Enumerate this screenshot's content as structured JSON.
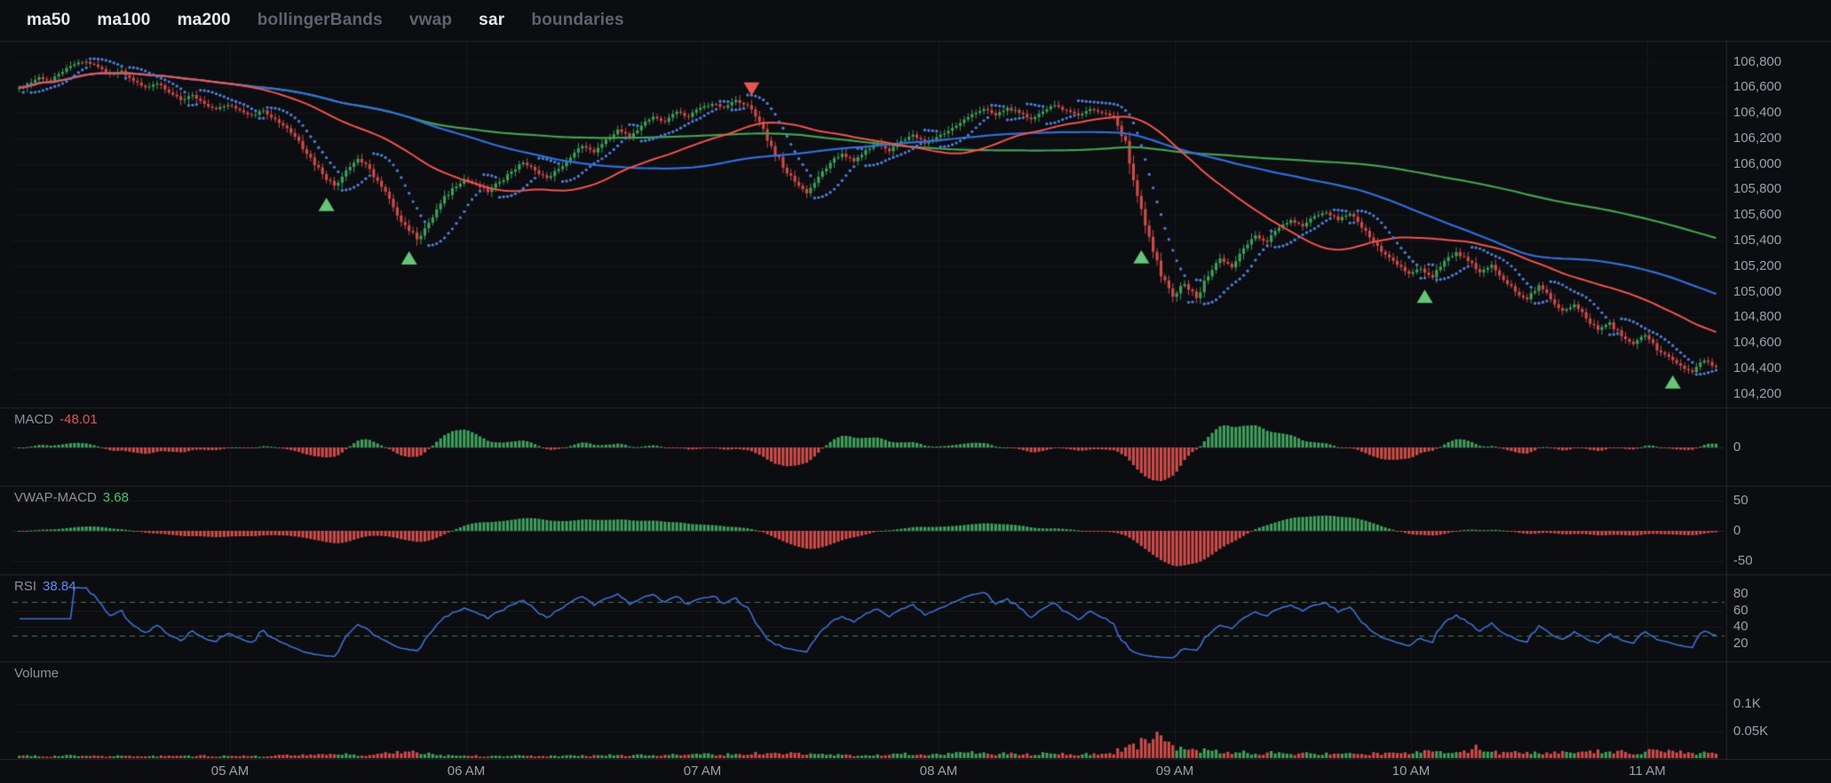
{
  "toolbar": {
    "items": [
      {
        "label": "ma50",
        "active": true
      },
      {
        "label": "ma100",
        "active": true
      },
      {
        "label": "ma200",
        "active": true
      },
      {
        "label": "bollingerBands",
        "active": false
      },
      {
        "label": "vwap",
        "active": false
      },
      {
        "label": "sar",
        "active": true
      },
      {
        "label": "boundaries",
        "active": false
      }
    ]
  },
  "panes": {
    "macd": {
      "title": "MACD",
      "value": "-48.01"
    },
    "vwap_macd": {
      "title": "VWAP-MACD",
      "value": "3.68"
    },
    "rsi": {
      "title": "RSI",
      "value": "38.84"
    },
    "volume": {
      "title": "Volume"
    }
  },
  "axes": {
    "price_ticks": [
      "106,800",
      "106,600",
      "106,400",
      "106,200",
      "106,000",
      "105,800",
      "105,600",
      "105,400",
      "105,200",
      "105,000",
      "104,800",
      "104,600",
      "104,400",
      "104,200"
    ],
    "macd_ticks": [
      {
        "label": "0",
        "value": 0
      }
    ],
    "vwap_ticks": [
      {
        "label": "50",
        "value": 50
      },
      {
        "label": "0",
        "value": 0
      },
      {
        "label": "-50",
        "value": -50
      }
    ],
    "rsi_ticks": [
      {
        "label": "80",
        "value": 80
      },
      {
        "label": "60",
        "value": 60
      },
      {
        "label": "40",
        "value": 40
      },
      {
        "label": "20",
        "value": 20
      }
    ],
    "volume_ticks": [
      {
        "label": "0.1K",
        "value": 0.1
      },
      {
        "label": "0.05K",
        "value": 0.05
      }
    ],
    "time_ticks": [
      {
        "label": "05 AM",
        "minute": 300
      },
      {
        "label": "06 AM",
        "minute": 360
      },
      {
        "label": "07 AM",
        "minute": 420
      },
      {
        "label": "08 AM",
        "minute": 480
      },
      {
        "label": "09 AM",
        "minute": 540
      },
      {
        "label": "10 AM",
        "minute": 600
      },
      {
        "label": "11 AM",
        "minute": 660
      }
    ]
  },
  "chart_data": {
    "type": "candlestick",
    "title": "Intraday price with ma50/ma100/ma200, parabolic SAR, MACD, VWAP-MACD, RSI and Volume panes",
    "start_time": "04:06",
    "interval_min": 3,
    "price_range": [
      104100,
      106950
    ],
    "price_gridline_step": 200,
    "rsi_bands": [
      70,
      30
    ],
    "series_visible": [
      "ma50",
      "ma100",
      "ma200",
      "sar"
    ],
    "indicator_values": {
      "macd": -48.01,
      "vwap_macd": 3.68,
      "rsi": 38.84
    },
    "closes": [
      106620,
      106680,
      106650,
      106720,
      106780,
      106800,
      106760,
      106700,
      106730,
      106650,
      106600,
      106630,
      106560,
      106500,
      106540,
      106470,
      106430,
      106460,
      106420,
      106380,
      106420,
      106350,
      106280,
      106180,
      106050,
      105920,
      105830,
      105950,
      106040,
      105960,
      105820,
      105660,
      105520,
      105410,
      105540,
      105690,
      105810,
      105880,
      105840,
      105780,
      105860,
      105940,
      106010,
      105950,
      105890,
      105960,
      106050,
      106140,
      106090,
      106190,
      106270,
      106210,
      106300,
      106370,
      106330,
      106410,
      106370,
      106440,
      106470,
      106440,
      106500,
      106460,
      106330,
      106140,
      105970,
      105860,
      105770,
      105900,
      106010,
      106080,
      106020,
      106110,
      106160,
      106100,
      106180,
      106230,
      106160,
      106210,
      106260,
      106320,
      106390,
      106430,
      106380,
      106440,
      106400,
      106350,
      106410,
      106460,
      106420,
      106380,
      106430,
      106400,
      106370,
      106180,
      105750,
      105430,
      105120,
      104960,
      105060,
      104950,
      105120,
      105260,
      105190,
      105340,
      105440,
      105390,
      105500,
      105560,
      105510,
      105590,
      105620,
      105560,
      105610,
      105500,
      105390,
      105290,
      105210,
      105140,
      105180,
      105110,
      105240,
      105310,
      105240,
      105150,
      105210,
      105090,
      105000,
      104940,
      105050,
      104940,
      104850,
      104900,
      104790,
      104700,
      104760,
      104650,
      104590,
      104660,
      104540,
      104490,
      104420,
      104370,
      104460,
      104410
    ],
    "volumes_k": [
      0.015,
      0.012,
      0.01,
      0.014,
      0.018,
      0.016,
      0.012,
      0.01,
      0.013,
      0.011,
      0.009,
      0.012,
      0.014,
      0.016,
      0.011,
      0.013,
      0.01,
      0.012,
      0.015,
      0.013,
      0.011,
      0.014,
      0.016,
      0.018,
      0.022,
      0.025,
      0.028,
      0.02,
      0.016,
      0.014,
      0.022,
      0.026,
      0.03,
      0.032,
      0.024,
      0.018,
      0.016,
      0.014,
      0.013,
      0.012,
      0.014,
      0.013,
      0.015,
      0.012,
      0.011,
      0.013,
      0.015,
      0.017,
      0.014,
      0.016,
      0.018,
      0.015,
      0.017,
      0.019,
      0.016,
      0.018,
      0.015,
      0.02,
      0.022,
      0.018,
      0.024,
      0.02,
      0.028,
      0.032,
      0.03,
      0.026,
      0.024,
      0.02,
      0.022,
      0.018,
      0.016,
      0.019,
      0.021,
      0.018,
      0.022,
      0.024,
      0.02,
      0.022,
      0.026,
      0.028,
      0.03,
      0.026,
      0.024,
      0.028,
      0.025,
      0.022,
      0.026,
      0.028,
      0.024,
      0.022,
      0.026,
      0.023,
      0.025,
      0.045,
      0.07,
      0.095,
      0.115,
      0.085,
      0.06,
      0.05,
      0.042,
      0.038,
      0.032,
      0.035,
      0.03,
      0.028,
      0.032,
      0.028,
      0.025,
      0.028,
      0.026,
      0.024,
      0.026,
      0.022,
      0.025,
      0.028,
      0.024,
      0.026,
      0.032,
      0.036,
      0.03,
      0.028,
      0.034,
      0.068,
      0.04,
      0.032,
      0.03,
      0.034,
      0.028,
      0.03,
      0.032,
      0.028,
      0.032,
      0.036,
      0.03,
      0.034,
      0.03,
      0.028,
      0.042,
      0.048,
      0.038,
      0.032,
      0.028,
      0.03
    ],
    "markers": [
      {
        "time": "05:24",
        "type": "buy",
        "price": 105680
      },
      {
        "time": "05:45",
        "type": "buy",
        "price": 105260
      },
      {
        "time": "07:12",
        "type": "sell",
        "price": 106590
      },
      {
        "time": "08:51",
        "type": "buy",
        "price": 105270
      },
      {
        "time": "10:03",
        "type": "buy",
        "price": 104960
      },
      {
        "time": "11:06",
        "type": "buy",
        "price": 104290
      }
    ]
  },
  "colors": {
    "bg": "#0c0d11",
    "candle_up": "#3f9e5a",
    "candle_down": "#cc4b49",
    "ma50": "#ef5350",
    "ma100": "#2f6fdb",
    "ma200": "#43a04f",
    "sar": "#4a7bd5",
    "rsi_line": "#3e6fd0",
    "rsi_band": "#3e7d4f",
    "buy_marker": "#63c776",
    "sell_marker": "#e4564f",
    "hist_up": "#3f9e5a",
    "hist_down": "#cc4b49",
    "axis_text": "#9aa0ab",
    "grid": "rgba(255,255,255,0.05)",
    "separator": "rgba(255,255,255,0.10)"
  }
}
